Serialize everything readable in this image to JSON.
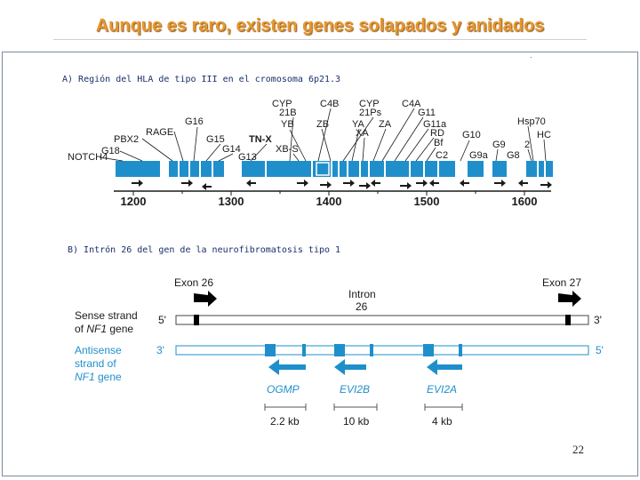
{
  "title": "Aunque es raro, existen genes solapados y anidados",
  "section_a": {
    "label": "A) Región del HLA de tipo III en el cromosoma 6p21.3",
    "genes": [
      "CYP 21B",
      "C4B",
      "CYP 21Ps",
      "C4A",
      "G16",
      "RAGE",
      "PBX2",
      "G18",
      "NOTCH4",
      "G15",
      "TN-X",
      "G14",
      "G13",
      "XB-S",
      "YB",
      "ZB",
      "YA",
      "XA",
      "ZA",
      "G11",
      "G11a",
      "RD",
      "Bf",
      "C2",
      "G10",
      "G9",
      "G9a",
      "G8",
      "Hsp70",
      "2",
      "HC"
    ],
    "axis_ticks": [
      "1200",
      "1300",
      "1400",
      "1500",
      "1600"
    ]
  },
  "section_b": {
    "label": "B) Intrón 26 del gen de la neurofibromatosis tipo 1",
    "exon_26": "Exon 26",
    "exon_27": "Exon 27",
    "intron": "Intron",
    "intron_num": "26",
    "sense_line1": "Sense strand",
    "sense_line2_pre": "of ",
    "sense_line2_gene": "NF1",
    "sense_line2_post": " gene",
    "antisense_line1": "Antisense",
    "antisense_line2": "strand of",
    "antisense_line3_gene": "NF1",
    "antisense_line3_post": " gene",
    "five_prime": "5'",
    "three_prime": "3'",
    "nested_genes": [
      {
        "name": "OGMP",
        "size": "2.2 kb"
      },
      {
        "name": "EVI2B",
        "size": "10 kb"
      },
      {
        "name": "EVI2A",
        "size": "4 kb"
      }
    ]
  },
  "slide_number": "22",
  "colors": {
    "title": "#e8962e",
    "gene_blue": "#1f8fcc",
    "label_navy": "#1a2f6b"
  }
}
